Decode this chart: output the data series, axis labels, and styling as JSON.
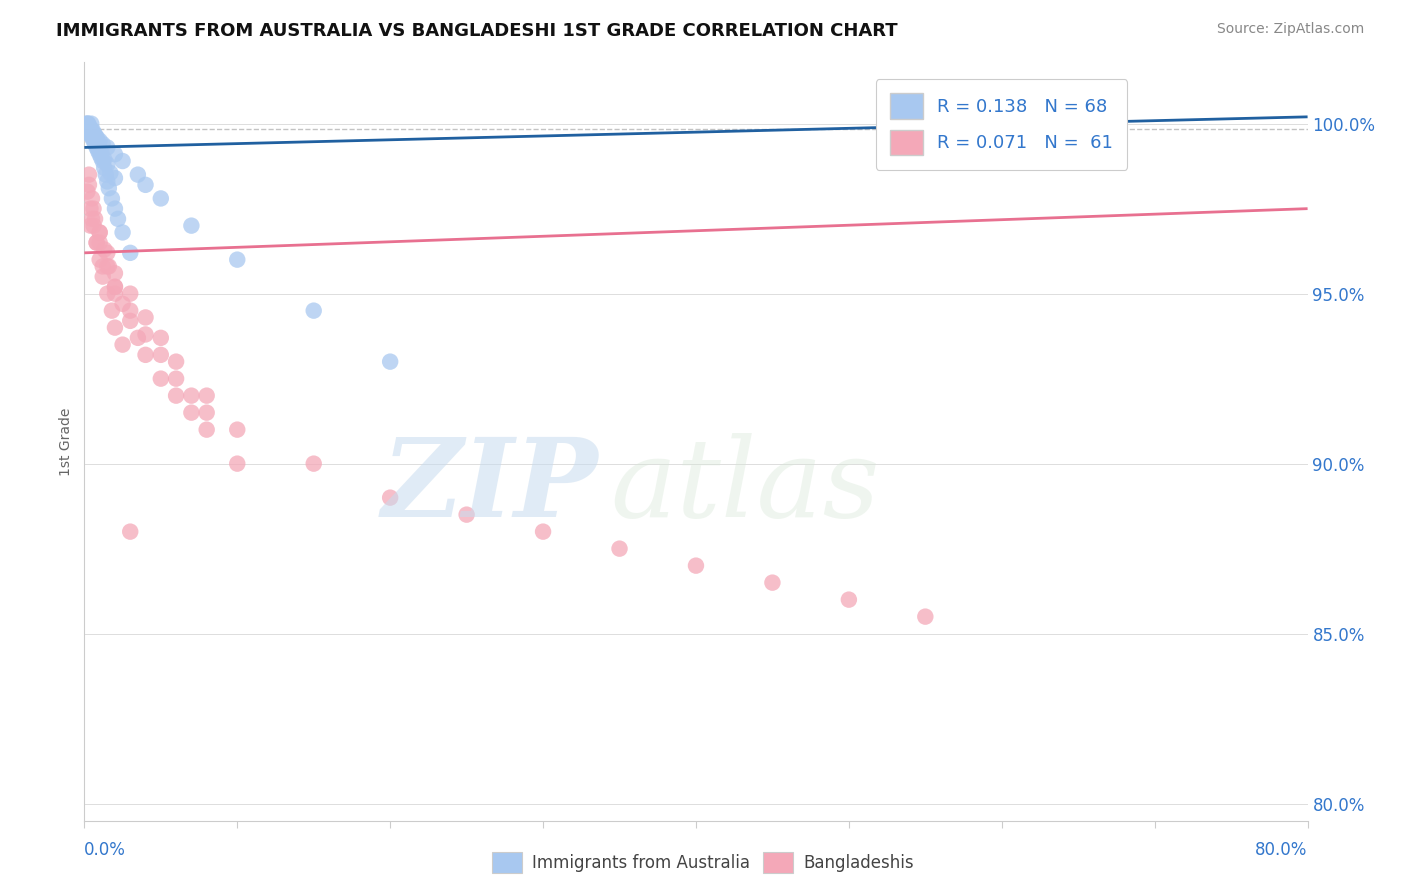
{
  "title": "IMMIGRANTS FROM AUSTRALIA VS BANGLADESHI 1ST GRADE CORRELATION CHART",
  "source": "Source: ZipAtlas.com",
  "ylabel": "1st Grade",
  "y_ticks": [
    80.0,
    85.0,
    90.0,
    95.0,
    100.0
  ],
  "x_min": 0.0,
  "x_max": 80.0,
  "y_min": 79.5,
  "y_max": 101.8,
  "legend1_R": 0.138,
  "legend1_N": 68,
  "legend2_R": 0.071,
  "legend2_N": 61,
  "color_blue": "#A8C8F0",
  "color_pink": "#F4A8B8",
  "color_blue_line": "#2060A0",
  "color_pink_line": "#E87090",
  "blue_trend_x0": 0.0,
  "blue_trend_y0": 99.3,
  "blue_trend_x1": 80.0,
  "blue_trend_y1": 100.2,
  "pink_trend_x0": 0.0,
  "pink_trend_y0": 96.2,
  "pink_trend_x1": 80.0,
  "pink_trend_y1": 97.5,
  "blue_scatter_x": [
    0.1,
    0.15,
    0.2,
    0.25,
    0.3,
    0.35,
    0.4,
    0.45,
    0.5,
    0.55,
    0.6,
    0.65,
    0.7,
    0.75,
    0.8,
    0.85,
    0.9,
    0.95,
    1.0,
    1.1,
    1.2,
    1.3,
    1.4,
    1.5,
    1.6,
    1.8,
    2.0,
    2.2,
    2.5,
    3.0,
    0.1,
    0.2,
    0.3,
    0.4,
    0.5,
    0.6,
    0.7,
    0.8,
    1.0,
    1.2,
    1.5,
    2.0,
    2.5,
    3.5,
    4.0,
    5.0,
    7.0,
    10.0,
    15.0,
    20.0,
    0.3,
    0.4,
    0.5,
    0.6,
    0.8,
    1.0,
    1.5,
    2.0,
    0.2,
    0.25,
    0.35,
    0.45,
    0.55,
    0.65,
    0.9,
    1.1,
    1.3,
    1.7
  ],
  "blue_scatter_y": [
    99.9,
    100.0,
    99.8,
    100.0,
    99.7,
    99.9,
    99.8,
    100.0,
    99.6,
    99.8,
    99.5,
    99.7,
    99.4,
    99.6,
    99.3,
    99.5,
    99.2,
    99.4,
    99.1,
    99.0,
    98.9,
    98.7,
    98.5,
    98.3,
    98.1,
    97.8,
    97.5,
    97.2,
    96.8,
    96.2,
    99.95,
    99.9,
    99.85,
    99.8,
    99.75,
    99.7,
    99.65,
    99.6,
    99.5,
    99.4,
    99.3,
    99.1,
    98.9,
    98.5,
    98.2,
    97.8,
    97.0,
    96.0,
    94.5,
    93.0,
    99.9,
    99.8,
    99.7,
    99.6,
    99.4,
    99.2,
    98.8,
    98.4,
    100.0,
    99.95,
    99.85,
    99.75,
    99.65,
    99.55,
    99.35,
    99.15,
    98.95,
    98.55
  ],
  "pink_scatter_x": [
    0.2,
    0.4,
    0.6,
    0.8,
    1.0,
    1.2,
    1.5,
    1.8,
    2.0,
    2.5,
    0.3,
    0.5,
    0.7,
    1.0,
    1.3,
    1.6,
    2.0,
    2.5,
    3.0,
    3.5,
    4.0,
    5.0,
    6.0,
    7.0,
    8.0,
    10.0,
    0.4,
    0.8,
    1.2,
    2.0,
    0.3,
    0.6,
    1.0,
    1.5,
    2.0,
    3.0,
    4.0,
    5.0,
    6.0,
    8.0,
    10.0,
    15.0,
    20.0,
    25.0,
    30.0,
    35.0,
    40.0,
    45.0,
    50.0,
    55.0,
    0.5,
    1.0,
    1.5,
    2.0,
    3.0,
    4.0,
    5.0,
    6.0,
    7.0,
    8.0,
    3.0
  ],
  "pink_scatter_y": [
    98.0,
    97.5,
    97.0,
    96.5,
    96.0,
    95.5,
    95.0,
    94.5,
    94.0,
    93.5,
    98.5,
    97.8,
    97.2,
    96.8,
    96.3,
    95.8,
    95.2,
    94.7,
    94.2,
    93.7,
    93.2,
    92.5,
    92.0,
    91.5,
    91.0,
    90.0,
    97.0,
    96.5,
    95.8,
    95.0,
    98.2,
    97.5,
    96.8,
    96.2,
    95.6,
    95.0,
    94.3,
    93.7,
    93.0,
    92.0,
    91.0,
    90.0,
    89.0,
    88.5,
    88.0,
    87.5,
    87.0,
    86.5,
    86.0,
    85.5,
    97.2,
    96.5,
    95.8,
    95.2,
    94.5,
    93.8,
    93.2,
    92.5,
    92.0,
    91.5,
    88.0
  ],
  "pink_low_outlier_x": 3.5,
  "pink_low_outlier_y": 87.5,
  "pink_mid_outlier_x": 11.0,
  "pink_mid_outlier_y": 90.5
}
